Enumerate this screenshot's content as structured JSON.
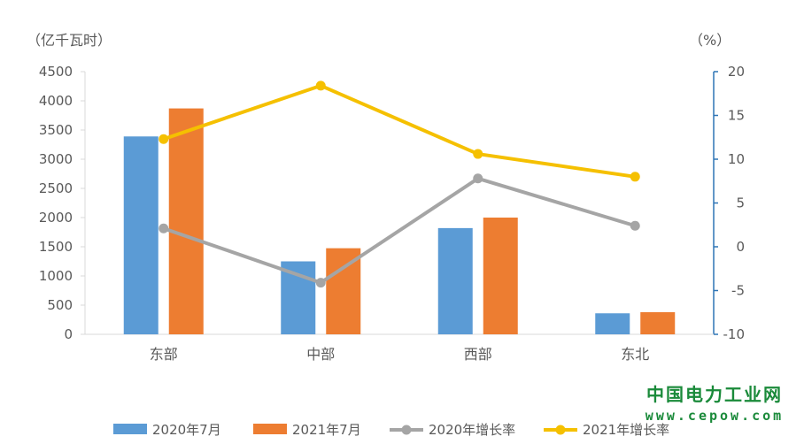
{
  "chart_data": {
    "type": "bar",
    "categories": [
      "东部",
      "中部",
      "西部",
      "东北"
    ],
    "series": [
      {
        "name": "2020年7月",
        "kind": "bar",
        "axis": "left",
        "color": "#5B9BD5",
        "values": [
          3390,
          1250,
          1820,
          360
        ]
      },
      {
        "name": "2021年7月",
        "kind": "bar",
        "axis": "left",
        "color": "#ED7D31",
        "values": [
          3870,
          1475,
          2000,
          380
        ]
      },
      {
        "name": "2020年增长率",
        "kind": "line",
        "axis": "right",
        "color": "#A5A5A5",
        "values": [
          2.1,
          -4.1,
          7.8,
          2.4
        ]
      },
      {
        "name": "2021年增长率",
        "kind": "line",
        "axis": "right",
        "color": "#F5C000",
        "values": [
          12.3,
          18.4,
          10.6,
          8.0
        ]
      }
    ],
    "ylabel": "（亿千瓦时）",
    "ylabel_right": "（%）",
    "ylim": [
      0,
      4500
    ],
    "ylim_right": [
      -10,
      20
    ],
    "yticks": [
      "0",
      "500",
      "1000",
      "1500",
      "2000",
      "2500",
      "3000",
      "3500",
      "4000",
      "4500"
    ],
    "yticks_right": [
      "-10",
      "-5",
      "0",
      "5",
      "10",
      "15",
      "20"
    ],
    "grid": false,
    "legend_position": "bottom",
    "right_axis_color": "#2E75B6"
  },
  "watermark": {
    "title": "中国电力工业网",
    "url": "www.cepow.com"
  }
}
